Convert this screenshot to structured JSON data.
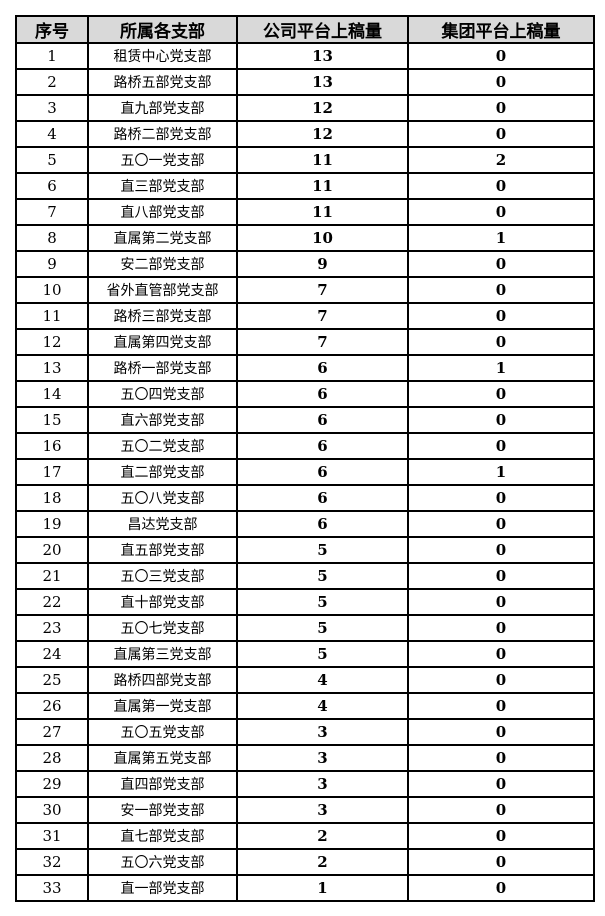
{
  "headers": [
    "序号",
    "所属各支部",
    "公司平台上稿量",
    "集团平台上稿量"
  ],
  "rows": [
    [
      "1",
      "租赁中心党支部",
      "13",
      "0"
    ],
    [
      "2",
      "路桥五部党支部",
      "13",
      "0"
    ],
    [
      "3",
      "直九部党支部",
      "12",
      "0"
    ],
    [
      "4",
      "路桥二部党支部",
      "12",
      "0"
    ],
    [
      "5",
      "五〇一党支部",
      "11",
      "2"
    ],
    [
      "6",
      "直三部党支部",
      "11",
      "0"
    ],
    [
      "7",
      "直八部党支部",
      "11",
      "0"
    ],
    [
      "8",
      "直属第二党支部",
      "10",
      "1"
    ],
    [
      "9",
      "安二部党支部",
      "9",
      "0"
    ],
    [
      "10",
      "省外直管部党支部",
      "7",
      "0"
    ],
    [
      "11",
      "路桥三部党支部",
      "7",
      "0"
    ],
    [
      "12",
      "直属第四党支部",
      "7",
      "0"
    ],
    [
      "13",
      "路桥一部党支部",
      "6",
      "1"
    ],
    [
      "14",
      "五〇四党支部",
      "6",
      "0"
    ],
    [
      "15",
      "直六部党支部",
      "6",
      "0"
    ],
    [
      "16",
      "五〇二党支部",
      "6",
      "0"
    ],
    [
      "17",
      "直二部党支部",
      "6",
      "1"
    ],
    [
      "18",
      "五〇八党支部",
      "6",
      "0"
    ],
    [
      "19",
      "昌达党支部",
      "6",
      "0"
    ],
    [
      "20",
      "直五部党支部",
      "5",
      "0"
    ],
    [
      "21",
      "五〇三党支部",
      "5",
      "0"
    ],
    [
      "22",
      "直十部党支部",
      "5",
      "0"
    ],
    [
      "23",
      "五〇七党支部",
      "5",
      "0"
    ],
    [
      "24",
      "直属第三党支部",
      "5",
      "0"
    ],
    [
      "25",
      "路桥四部党支部",
      "4",
      "0"
    ],
    [
      "26",
      "直属第一党支部",
      "4",
      "0"
    ],
    [
      "27",
      "五〇五党支部",
      "3",
      "0"
    ],
    [
      "28",
      "直属第五党支部",
      "3",
      "0"
    ],
    [
      "29",
      "直四部党支部",
      "3",
      "0"
    ],
    [
      "30",
      "安一部党支部",
      "3",
      "0"
    ],
    [
      "31",
      "直七部党支部",
      "2",
      "0"
    ],
    [
      "32",
      "五〇六党支部",
      "2",
      "0"
    ],
    [
      "33",
      "直一部党支部",
      "1",
      "0"
    ]
  ],
  "colors": {
    "header_bg": "#d9d9d9",
    "border": "#000000"
  }
}
